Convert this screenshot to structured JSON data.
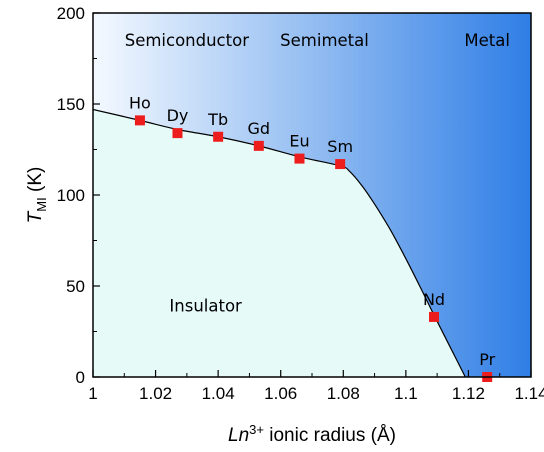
{
  "chart_data": {
    "type": "scatter",
    "xlabel": {
      "italic": "Ln",
      "sup": "3+",
      "rest": " ionic radius (Å)"
    },
    "ylabel": {
      "main": "T",
      "sub": "MI",
      "rest": " (K)"
    },
    "xlim": [
      1.0,
      1.14
    ],
    "ylim": [
      0,
      200
    ],
    "xticks": [
      1,
      1.02,
      1.04,
      1.06,
      1.08,
      1.1,
      1.12,
      1.14
    ],
    "xtick_labels": [
      "1",
      "1.02",
      "1.04",
      "1.06",
      "1.08",
      "1.1",
      "1.12",
      "1.14"
    ],
    "yticks": [
      0,
      50,
      100,
      150,
      200
    ],
    "ytick_labels": [
      "0",
      "50",
      "100",
      "150",
      "200"
    ],
    "grid": false,
    "regions": [
      {
        "label": "Semiconductor",
        "x": 1.03,
        "y": 182
      },
      {
        "label": "Semimetal",
        "x": 1.074,
        "y": 182
      },
      {
        "label": "Metal",
        "x": 1.126,
        "y": 182
      },
      {
        "label": "Insulator",
        "x": 1.036,
        "y": 36
      }
    ],
    "points": [
      {
        "label": "Ho",
        "x": 1.015,
        "y": 141
      },
      {
        "label": "Dy",
        "x": 1.027,
        "y": 134
      },
      {
        "label": "Tb",
        "x": 1.04,
        "y": 132
      },
      {
        "label": "Gd",
        "x": 1.053,
        "y": 127
      },
      {
        "label": "Eu",
        "x": 1.066,
        "y": 120
      },
      {
        "label": "Sm",
        "x": 1.079,
        "y": 117
      },
      {
        "label": "Nd",
        "x": 1.109,
        "y": 33
      },
      {
        "label": "Pr",
        "x": 1.126,
        "y": 0
      }
    ],
    "boundary": [
      [
        1.0,
        147
      ],
      [
        1.015,
        141
      ],
      [
        1.027,
        136
      ],
      [
        1.04,
        132
      ],
      [
        1.053,
        127
      ],
      [
        1.066,
        121
      ],
      [
        1.079,
        116
      ],
      [
        1.082,
        113
      ],
      [
        1.086,
        105
      ],
      [
        1.09,
        95
      ],
      [
        1.095,
        81
      ],
      [
        1.1,
        65
      ],
      [
        1.105,
        48
      ],
      [
        1.109,
        34
      ],
      [
        1.114,
        17
      ],
      [
        1.119,
        0
      ]
    ],
    "colors": {
      "insulator_fill": "#e6fbf7",
      "gradient_left": "#f4f9ff",
      "gradient_right": "#2f7ee6",
      "marker": "#ee1d1d",
      "line": "#000000"
    }
  }
}
